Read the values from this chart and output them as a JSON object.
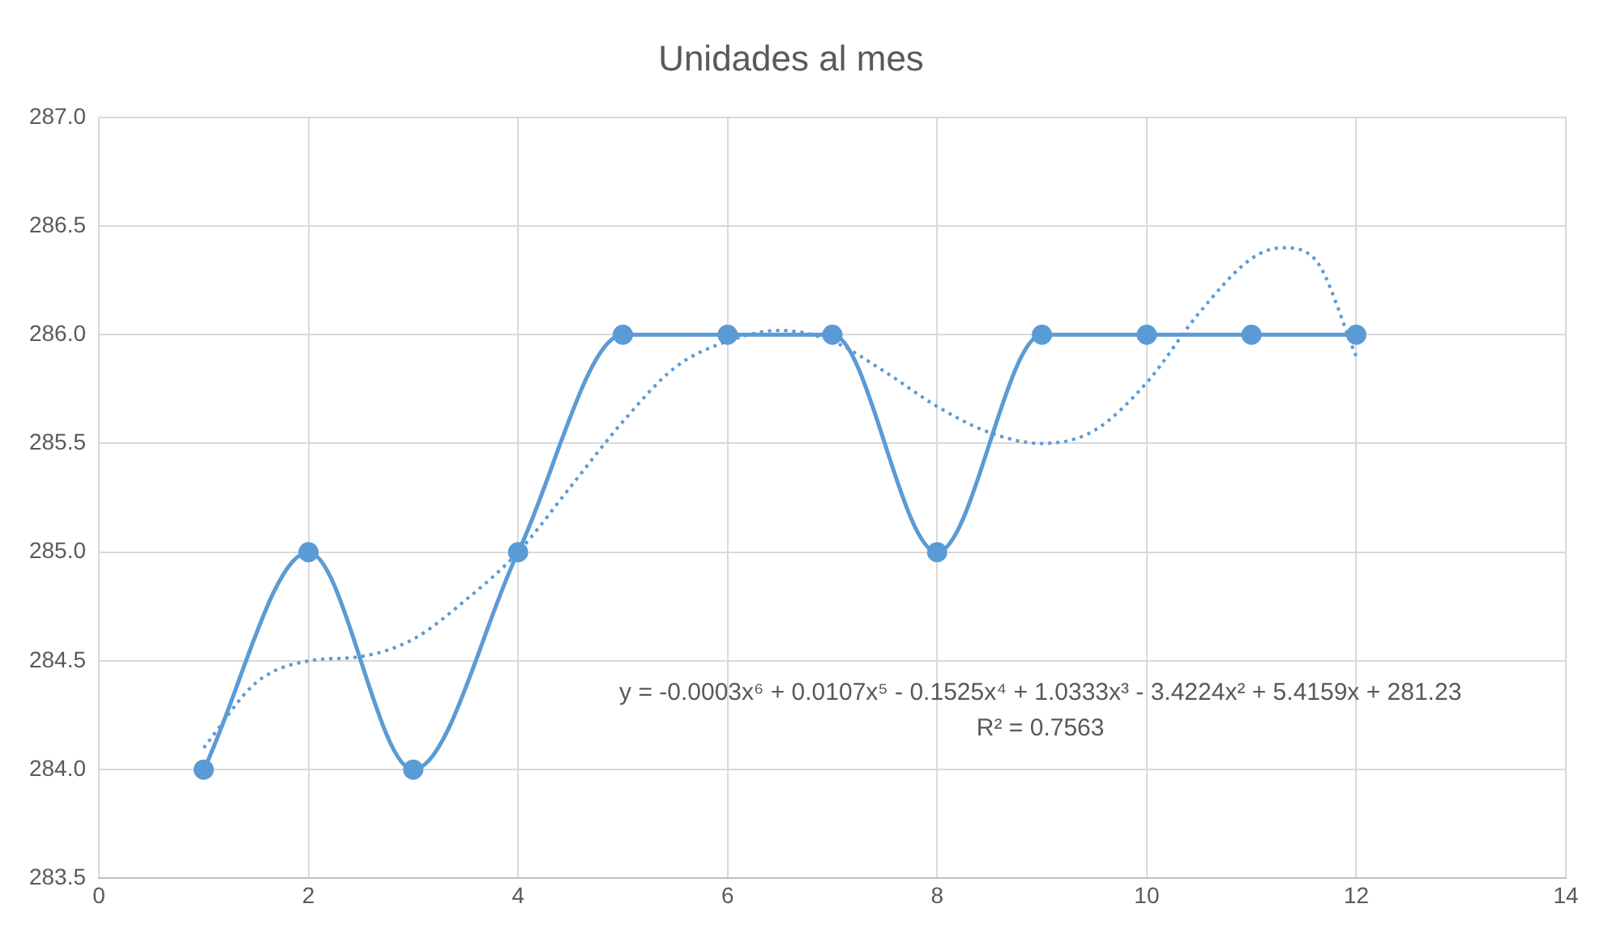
{
  "chart_data": {
    "type": "line",
    "title": "Unidades al mes",
    "x": [
      1,
      2,
      3,
      4,
      5,
      6,
      7,
      8,
      9,
      10,
      11,
      12
    ],
    "series": [
      {
        "color": "#5b9bd5",
        "marker": "circle",
        "line_style": "solid",
        "values": [
          284,
          285,
          284,
          285,
          286,
          286,
          286,
          285,
          286,
          286,
          286,
          286
        ]
      },
      {
        "type": "line",
        "color": "#5b9bd5",
        "marker": "none",
        "line_style": "dotted",
        "x": [
          1,
          1.5,
          2,
          2.5,
          3,
          3.5,
          4,
          4.5,
          5,
          5.5,
          6,
          6.5,
          7,
          7.5,
          8,
          8.5,
          9,
          9.5,
          10,
          10.5,
          11,
          11.3,
          11.6,
          12
        ],
        "values": [
          284.1,
          284.4,
          284.5,
          284.52,
          284.6,
          284.78,
          285.0,
          285.3,
          285.6,
          285.85,
          285.97,
          286.02,
          285.97,
          285.83,
          285.67,
          285.55,
          285.5,
          285.56,
          285.78,
          286.1,
          286.35,
          286.4,
          286.35,
          285.9
        ]
      }
    ],
    "xlim": [
      0,
      14
    ],
    "xticks": [
      0,
      2,
      4,
      6,
      8,
      10,
      12,
      14
    ],
    "ylim": [
      283.5,
      287
    ],
    "yticks": [
      {
        "value": 283.5,
        "label": "283.5"
      },
      {
        "value": 284,
        "label": "284.0"
      },
      {
        "value": 284.5,
        "label": "284.5"
      },
      {
        "value": 285,
        "label": "285.0"
      },
      {
        "value": 285.5,
        "label": "285.5"
      },
      {
        "value": 286,
        "label": "286.0"
      },
      {
        "value": 286.5,
        "label": "286.5"
      },
      {
        "value": 287,
        "label": "287.0"
      }
    ],
    "grid": true,
    "legend": false,
    "annotations": [
      "y = -0.0003x⁶ + 0.0107x⁵ - 0.1525x⁴ + 1.0333x³ - 3.4224x² + 5.4159x + 281.23",
      "R² = 0.7563"
    ]
  }
}
